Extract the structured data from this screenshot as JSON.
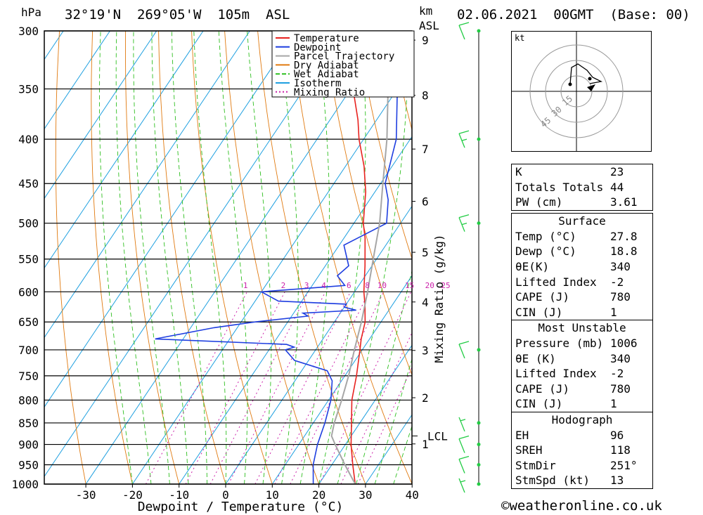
{
  "header": {
    "pressure_unit": "hPa",
    "location": "32°19'N  269°05'W  105m  ASL",
    "height_unit_line1": "km",
    "height_unit_line2": "ASL",
    "datetime": "02.06.2021  00GMT  (Base: 00)"
  },
  "chart_data": {
    "type": "line",
    "title": "",
    "xlabel": "Dewpoint / Temperature (°C)",
    "ylabel": "",
    "mixing_ratio_label": "Mixing Ratio (g/kg)",
    "xlim": [
      -40,
      40
    ],
    "ylim_hPa": [
      1000,
      300
    ],
    "pressure_ticks": [
      300,
      350,
      400,
      450,
      500,
      550,
      600,
      650,
      700,
      750,
      800,
      850,
      900,
      950,
      1000
    ],
    "temperature_ticks": [
      -30,
      -20,
      -10,
      0,
      10,
      20,
      30,
      40
    ],
    "height_ticks_km": [
      1,
      2,
      3,
      4,
      5,
      6,
      7,
      8,
      9
    ],
    "lcl_label": "LCL",
    "mixing_ratio_ticks": [
      "1",
      "2",
      "3",
      "4",
      "6",
      "8",
      "10",
      "15",
      "20",
      "25"
    ],
    "legend": [
      {
        "name": "Temperature",
        "color": "#e8221f"
      },
      {
        "name": "Dewpoint",
        "color": "#1f3fe0"
      },
      {
        "name": "Parcel Trajectory",
        "color": "#a6a6a6"
      },
      {
        "name": "Dry Adiabat",
        "color": "#e07a10"
      },
      {
        "name": "Wet Adiabat",
        "color": "#2fbf20"
      },
      {
        "name": "Isotherm",
        "color": "#1fa0e0"
      },
      {
        "name": "Mixing Ratio",
        "color": "#cc22aa"
      }
    ],
    "series": [
      {
        "name": "Temperature",
        "p": [
          1000,
          950,
          900,
          850,
          800,
          750,
          700,
          680,
          650,
          620,
          600,
          560,
          520,
          500,
          460,
          430,
          400,
          380,
          350,
          320,
          300
        ],
        "t": [
          27.8,
          24.5,
          21.2,
          18.2,
          15.0,
          12.5,
          9.5,
          8.2,
          6.6,
          4.0,
          2.0,
          -1.5,
          -5.5,
          -8.0,
          -12.0,
          -16.0,
          -21.0,
          -24.0,
          -29.5,
          -35.0,
          -38.5
        ]
      },
      {
        "name": "Dewpoint",
        "p": [
          1000,
          950,
          900,
          850,
          800,
          760,
          740,
          720,
          700,
          695,
          690,
          680,
          660,
          650,
          640,
          635,
          630,
          625,
          620,
          615,
          600,
          590,
          575,
          560,
          530,
          500,
          470,
          450,
          400,
          350,
          300
        ],
        "t": [
          18.8,
          16.0,
          14.0,
          12.5,
          10.5,
          8.0,
          5.5,
          -3.0,
          -6.5,
          -5.0,
          -7.0,
          -36.0,
          -25.0,
          -17.0,
          -6.5,
          -8.0,
          3.0,
          0.0,
          0.0,
          -15.0,
          -20.0,
          -3.0,
          -6.0,
          -5.0,
          -9.0,
          -3.0,
          -6.0,
          -9.0,
          -13.0,
          -20.0,
          -29.0
        ]
      },
      {
        "name": "Parcel Trajectory",
        "p": [
          1000,
          950,
          900,
          880,
          850,
          800,
          750,
          700,
          650,
          600,
          550,
          500,
          450,
          400,
          350,
          300
        ],
        "t": [
          27.8,
          22.8,
          17.8,
          15.8,
          14.5,
          12.8,
          10.8,
          8.3,
          5.8,
          2.8,
          -0.7,
          -4.5,
          -9.5,
          -15.0,
          -22.0,
          -31.0
        ]
      }
    ]
  },
  "wind_barbs": [
    {
      "p": 1000,
      "speed_kt": 5
    },
    {
      "p": 950,
      "speed_kt": 10
    },
    {
      "p": 900,
      "speed_kt": 10
    },
    {
      "p": 850,
      "speed_kt": 5
    },
    {
      "p": 700,
      "speed_kt": 10
    },
    {
      "p": 500,
      "speed_kt": 15
    },
    {
      "p": 400,
      "speed_kt": 15
    },
    {
      "p": 300,
      "speed_kt": 10
    }
  ],
  "hodograph": {
    "unit": "kt",
    "rings": [
      "15",
      "30",
      "45"
    ]
  },
  "indices": {
    "rows": [
      {
        "label": "K",
        "value": "23"
      },
      {
        "label": "Totals Totals",
        "value": "44"
      },
      {
        "label": "PW (cm)",
        "value": "3.61"
      }
    ]
  },
  "surface": {
    "title": "Surface",
    "rows": [
      {
        "label": "Temp (°C)",
        "value": "27.8"
      },
      {
        "label": "Dewp (°C)",
        "value": "18.8"
      },
      {
        "label": "θE(K)",
        "value": "340"
      },
      {
        "label": "Lifted Index",
        "value": "-2"
      },
      {
        "label": "CAPE (J)",
        "value": "780"
      },
      {
        "label": "CIN (J)",
        "value": "1"
      }
    ]
  },
  "most_unstable": {
    "title": "Most Unstable",
    "rows": [
      {
        "label": "Pressure (mb)",
        "value": "1006"
      },
      {
        "label": "θE (K)",
        "value": "340"
      },
      {
        "label": "Lifted Index",
        "value": "-2"
      },
      {
        "label": "CAPE (J)",
        "value": "780"
      },
      {
        "label": "CIN (J)",
        "value": "1"
      }
    ]
  },
  "hodograph_table": {
    "title": "Hodograph",
    "rows": [
      {
        "label": "EH",
        "value": "96"
      },
      {
        "label": "SREH",
        "value": "118"
      },
      {
        "label": "StmDir",
        "value": "251°"
      },
      {
        "label": "StmSpd (kt)",
        "value": "13"
      }
    ]
  },
  "copyright": "©weatheronline.co.uk"
}
